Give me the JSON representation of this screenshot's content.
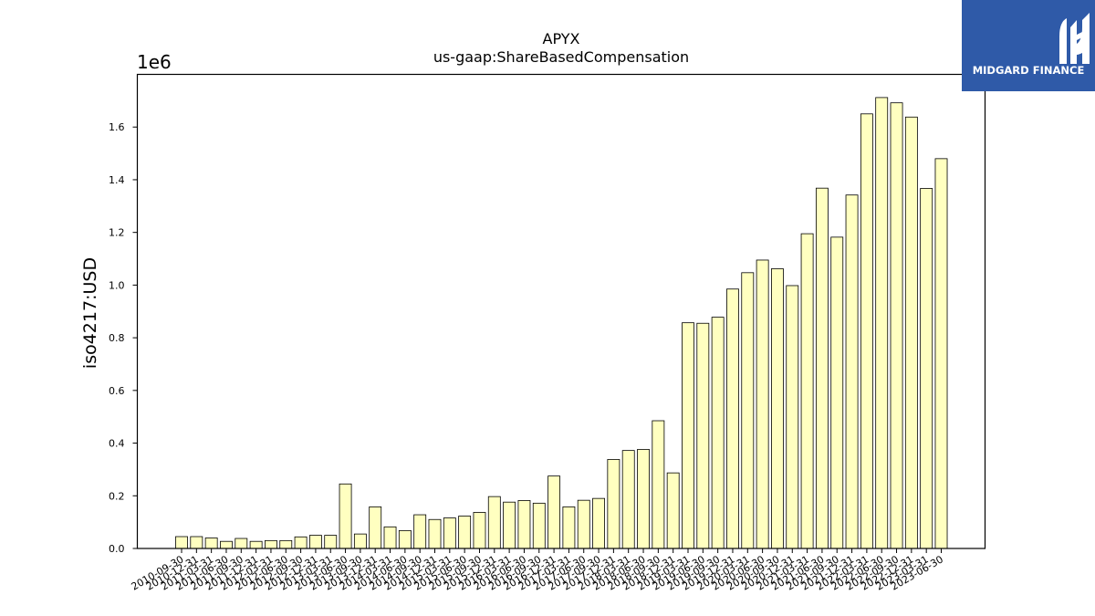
{
  "brand": {
    "name": "MIDGARD FINANCE",
    "color": "#2f5aa8"
  },
  "chart_data": {
    "type": "bar",
    "title": "APYX",
    "subtitle": "us-gaap:ShareBasedCompensation",
    "ylabel": "iso4217:USD",
    "xlabel": "",
    "y_offset_label": "1e6",
    "ylim": [
      0,
      1.8
    ],
    "yticks": [
      "0.0",
      "0.2",
      "0.4",
      "0.6",
      "0.8",
      "1.0",
      "1.2",
      "1.4",
      "1.6"
    ],
    "grid": false,
    "bar_fill": "#ffffc0",
    "bar_edge": "#000000",
    "categories": [
      "2010-09-30",
      "2010-12-31",
      "2011-03-31",
      "2011-06-30",
      "2011-09-30",
      "2011-12-31",
      "2012-03-31",
      "2012-06-30",
      "2012-09-30",
      "2012-12-31",
      "2013-03-31",
      "2013-06-30",
      "2013-09-30",
      "2013-12-31",
      "2014-03-31",
      "2014-06-30",
      "2014-09-30",
      "2014-12-31",
      "2015-03-31",
      "2015-06-30",
      "2015-09-30",
      "2015-12-31",
      "2016-03-31",
      "2016-06-30",
      "2016-09-30",
      "2016-12-31",
      "2017-03-31",
      "2017-06-30",
      "2017-09-30",
      "2017-12-31",
      "2018-03-31",
      "2018-06-30",
      "2018-09-30",
      "2018-12-31",
      "2019-03-31",
      "2019-06-30",
      "2019-09-30",
      "2019-12-31",
      "2020-03-31",
      "2020-06-30",
      "2020-09-30",
      "2020-12-31",
      "2021-03-31",
      "2021-06-30",
      "2021-09-30",
      "2021-12-31",
      "2022-03-31",
      "2022-06-30",
      "2022-09-30",
      "2022-12-31",
      "2023-03-31",
      "2023-06-30"
    ],
    "values": [
      0.045,
      0.045,
      0.04,
      0.027,
      0.038,
      0.027,
      0.03,
      0.03,
      0.044,
      0.05,
      0.05,
      0.245,
      0.055,
      0.158,
      0.082,
      0.068,
      0.128,
      0.11,
      0.116,
      0.123,
      0.137,
      0.197,
      0.176,
      0.182,
      0.172,
      0.275,
      0.158,
      0.183,
      0.19,
      0.338,
      0.372,
      0.376,
      0.485,
      0.287,
      0.857,
      0.855,
      0.878,
      0.985,
      1.047,
      1.095,
      1.062,
      0.998,
      1.195,
      1.368,
      1.182,
      1.342,
      1.65,
      1.712,
      1.692,
      1.638,
      1.367,
      1.48
    ]
  }
}
